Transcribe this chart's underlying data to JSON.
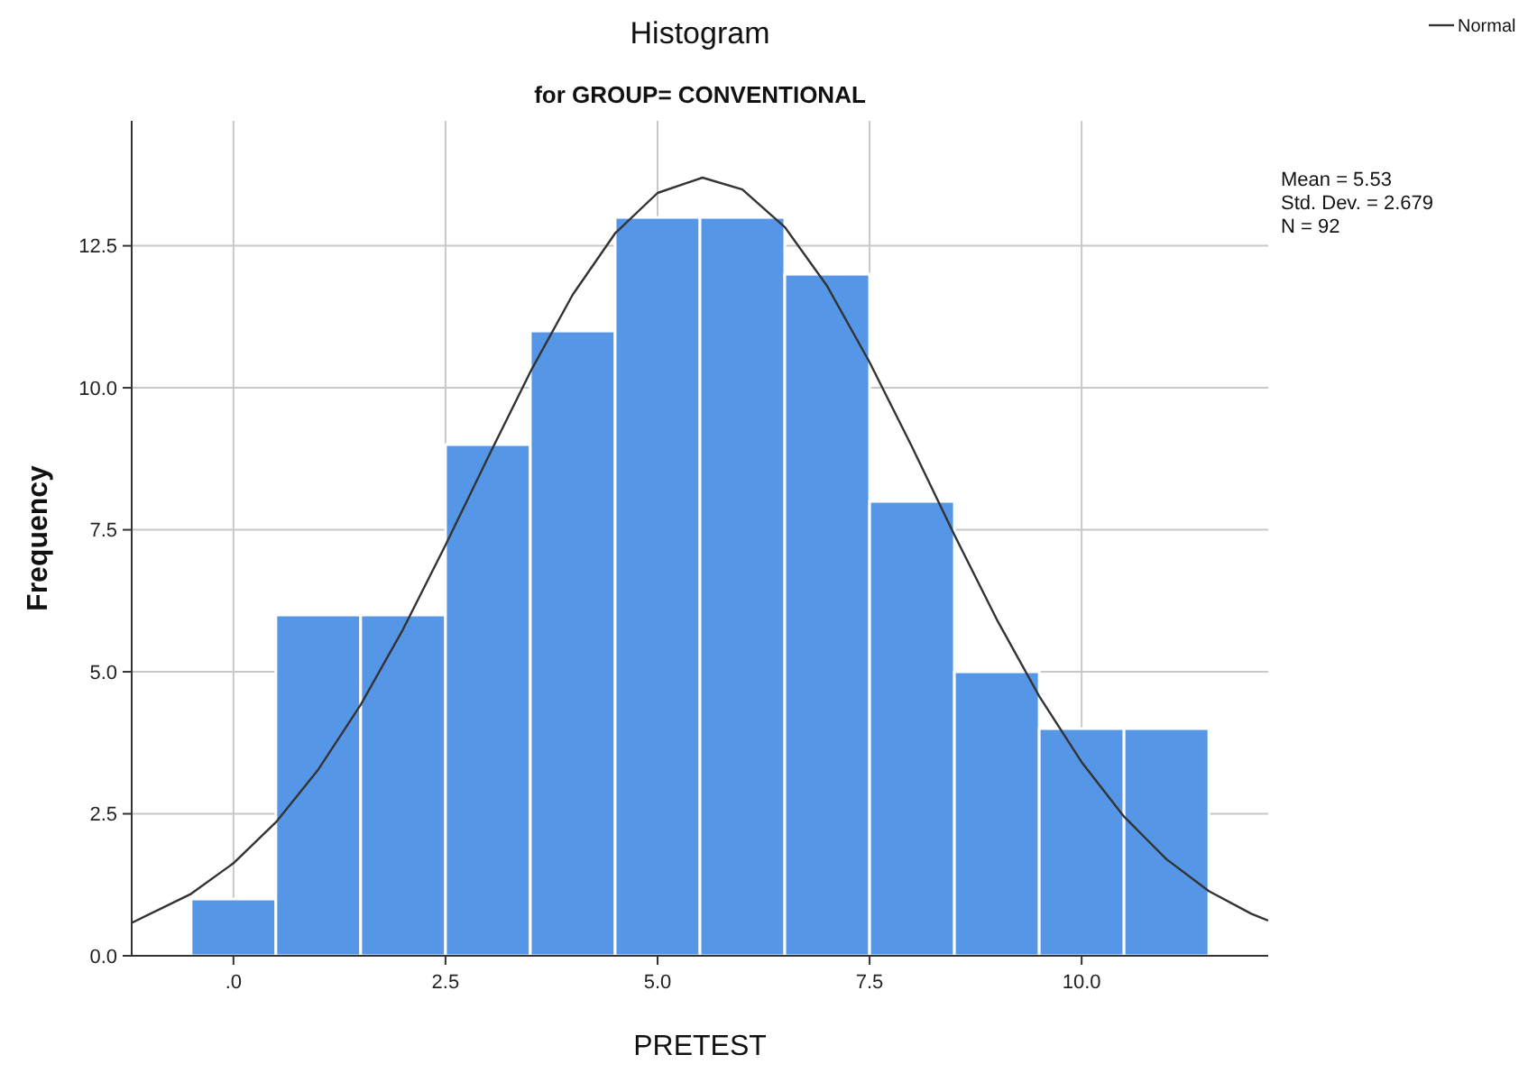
{
  "chart_data": {
    "type": "histogram",
    "title": "Histogram",
    "subtitle": "for GROUP= CONVENTIONAL",
    "xlabel": "PRETEST",
    "ylabel": "Frequency",
    "bins": [
      -0.5,
      0.5,
      1.5,
      2.5,
      3.5,
      4.5,
      5.5,
      6.5,
      7.5,
      8.5,
      9.5,
      10.5,
      11.5
    ],
    "values": [
      1,
      6,
      6,
      9,
      11,
      13,
      13,
      12,
      8,
      5,
      4,
      4
    ],
    "color": "#5596e6",
    "series": [
      {
        "type": "line",
        "name": "Normal",
        "color": "#333333",
        "x": [
          -1.2,
          -0.5,
          0,
          0.5,
          1,
          1.5,
          2,
          2.5,
          3,
          3.5,
          4,
          4.5,
          5,
          5.53,
          6,
          6.5,
          7,
          7.5,
          8,
          8.5,
          9,
          9.5,
          10,
          10.5,
          11,
          11.5,
          12,
          12.2
        ],
        "values": [
          0.58,
          1.09,
          1.63,
          2.35,
          3.28,
          4.42,
          5.75,
          7.23,
          8.77,
          10.28,
          11.64,
          12.72,
          13.43,
          13.7,
          13.49,
          12.83,
          11.79,
          10.45,
          8.96,
          7.41,
          5.92,
          4.57,
          3.41,
          2.45,
          1.7,
          1.14,
          0.74,
          0.62
        ]
      }
    ],
    "xlim": [
      -1.2,
      12.2
    ],
    "xticks": [
      {
        "value": 0,
        "label": ".0"
      },
      2.5,
      {
        "value": 5,
        "label": "5.0"
      },
      7.5,
      {
        "value": 10,
        "label": "10.0"
      }
    ],
    "ylim": [
      0,
      14.7
    ],
    "yticks": [
      {
        "value": 0,
        "label": "0.0"
      },
      2.5,
      {
        "value": 5,
        "label": "5.0"
      },
      7.5,
      {
        "value": 10,
        "label": "10.0"
      },
      12.5
    ],
    "grid": true,
    "legend": "top right",
    "line_style": "solid",
    "annotations": [
      "Mean = 5.53",
      "Std. Dev. = 2.679",
      "N = 92"
    ]
  }
}
